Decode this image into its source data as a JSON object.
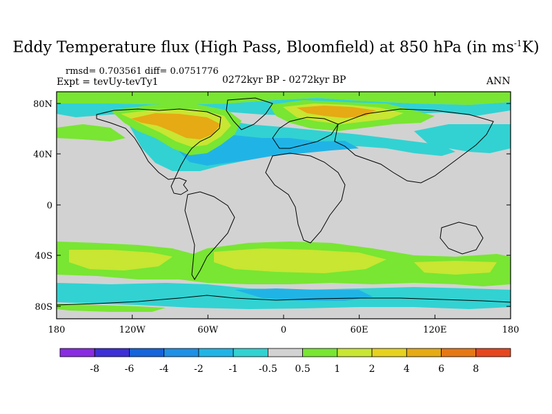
{
  "title": {
    "main": "Eddy Temperature flux (High Pass, Bloomfield) at 850 hPa (in ms",
    "sup": "-1",
    "tail": "K)"
  },
  "stats": "rmsd= 0.703561 diff= 0.0751776",
  "expt": "Expt = tevUy-tevTy1",
  "period": "0272kyr BP - 0272kyr BP",
  "season": "ANN",
  "lat_ticks": [
    "80N",
    "40N",
    "0",
    "40S",
    "80S"
  ],
  "lon_ticks": [
    "180",
    "120W",
    "60W",
    "0",
    "60E",
    "120E",
    "180"
  ],
  "colorbar": {
    "colors": [
      "#8a2be2",
      "#3c2fd6",
      "#1464dc",
      "#1e90e6",
      "#20b4e6",
      "#32d2d2",
      "#d2d2d2",
      "#78e632",
      "#c8e632",
      "#e6d21e",
      "#e6aa14",
      "#e67814",
      "#e6461e"
    ],
    "labels": [
      "-8",
      "-6",
      "-4",
      "-2",
      "-1",
      "-0.5",
      "0.5",
      "1",
      "2",
      "4",
      "6",
      "8"
    ]
  },
  "colors": {
    "land_fill": "#d2d2d2",
    "coast": "#000000"
  }
}
